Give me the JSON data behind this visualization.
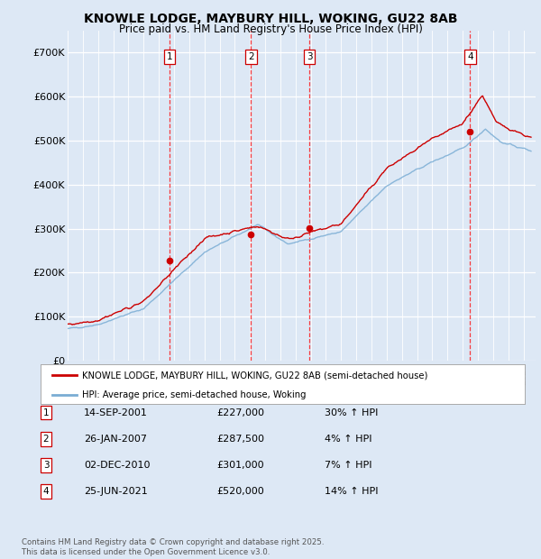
{
  "title": "KNOWLE LODGE, MAYBURY HILL, WOKING, GU22 8AB",
  "subtitle": "Price paid vs. HM Land Registry's House Price Index (HPI)",
  "ylim": [
    0,
    750000
  ],
  "yticks": [
    0,
    100000,
    200000,
    300000,
    400000,
    500000,
    600000,
    700000
  ],
  "ytick_labels": [
    "£0",
    "£100K",
    "£200K",
    "£300K",
    "£400K",
    "£500K",
    "£600K",
    "£700K"
  ],
  "background_color": "#dde8f5",
  "plot_bg_color": "#dde8f5",
  "sale_year_floats": [
    2001.71,
    2007.07,
    2010.92,
    2021.49
  ],
  "sale_prices": [
    227000,
    287500,
    301000,
    520000
  ],
  "sale_labels": [
    "1",
    "2",
    "3",
    "4"
  ],
  "legend_line1": "KNOWLE LODGE, MAYBURY HILL, WOKING, GU22 8AB (semi-detached house)",
  "legend_line2": "HPI: Average price, semi-detached house, Woking",
  "table_data": [
    [
      "1",
      "14-SEP-2001",
      "£227,000",
      "30% ↑ HPI"
    ],
    [
      "2",
      "26-JAN-2007",
      "£287,500",
      "4% ↑ HPI"
    ],
    [
      "3",
      "02-DEC-2010",
      "£301,000",
      "7% ↑ HPI"
    ],
    [
      "4",
      "25-JUN-2021",
      "£520,000",
      "14% ↑ HPI"
    ]
  ],
  "footer": "Contains HM Land Registry data © Crown copyright and database right 2025.\nThis data is licensed under the Open Government Licence v3.0.",
  "red_line_color": "#cc0000",
  "blue_line_color": "#7aadd4"
}
